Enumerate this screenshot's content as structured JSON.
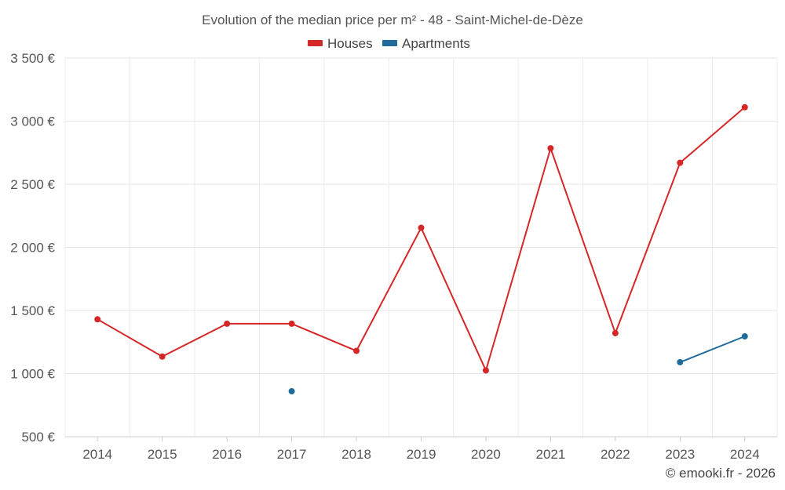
{
  "chart_data": {
    "type": "line",
    "title": "Evolution of the median price per m² - 48 - Saint-Michel-de-Dèze",
    "x": [
      2014,
      2015,
      2016,
      2017,
      2018,
      2019,
      2020,
      2021,
      2022,
      2023,
      2024
    ],
    "x_tick_labels": [
      "2014",
      "2015",
      "2016",
      "2017",
      "2018",
      "2019",
      "2020",
      "2021",
      "2022",
      "2023",
      "2024"
    ],
    "y_tick_values": [
      500,
      1000,
      1500,
      2000,
      2500,
      3000,
      3500
    ],
    "y_tick_labels": [
      "500 €",
      "1 000 €",
      "1 500 €",
      "2 000 €",
      "2 500 €",
      "3 000 €",
      "3 500 €"
    ],
    "ylim": [
      500,
      3500
    ],
    "grid": true,
    "legend_position": "top-center",
    "series": [
      {
        "name": "Houses",
        "color": "#d62728",
        "values": [
          1430,
          1135,
          1395,
          1395,
          1180,
          2155,
          1025,
          2785,
          1320,
          2670,
          3110
        ]
      },
      {
        "name": "Apartments",
        "color": "#1f6b9a",
        "values": [
          null,
          null,
          null,
          860,
          null,
          null,
          null,
          null,
          null,
          1090,
          1295
        ]
      }
    ]
  },
  "credit": "© emooki.fr - 2026"
}
